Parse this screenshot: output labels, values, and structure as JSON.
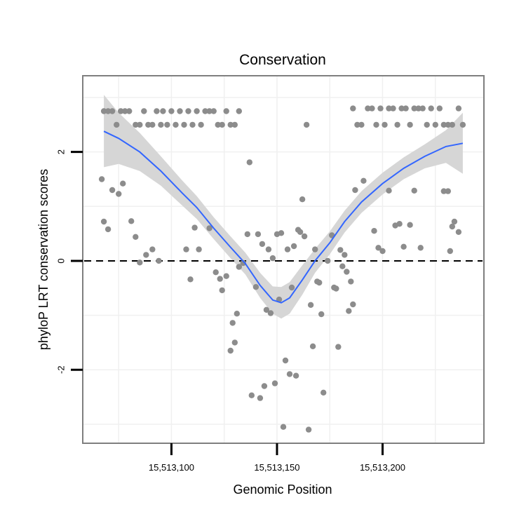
{
  "chart_data": {
    "type": "scatter",
    "title": "Conservation",
    "xlabel": "Genomic Position",
    "ylabel": "phyloP LRT conservation scores",
    "xlim": [
      15513058,
      15513248
    ],
    "ylim": [
      -3.35,
      3.4
    ],
    "x_ticks": [
      15513100,
      15513150,
      15513200
    ],
    "x_tick_labels": [
      "15,513,100",
      "15,513,150",
      "15,513,200"
    ],
    "y_ticks": [
      -2,
      0,
      2
    ],
    "y_tick_labels": [
      "-2",
      "0",
      "2"
    ],
    "reference_line": {
      "y": 0,
      "style": "dashed"
    },
    "colors": {
      "points": "#8c8c8c",
      "smooth": "#3366ff",
      "ribbon": "#d6d6d6",
      "frame": "#7f7f7f",
      "grid": "#f0f0f0"
    },
    "smooth": {
      "x": [
        15513068,
        15513075,
        15513085,
        15513095,
        15513105,
        15513112,
        15513120,
        15513128,
        15513135,
        15513142,
        15513148,
        15513152,
        15513156,
        15513162,
        15513168,
        15513175,
        15513182,
        15513190,
        15513200,
        15513210,
        15513220,
        15513230,
        15513238
      ],
      "y": [
        2.38,
        2.25,
        2.0,
        1.65,
        1.25,
        0.98,
        0.6,
        0.25,
        -0.05,
        -0.45,
        -0.72,
        -0.77,
        -0.68,
        -0.35,
        0.0,
        0.33,
        0.72,
        1.08,
        1.42,
        1.7,
        1.92,
        2.1,
        2.16
      ],
      "lower": [
        1.72,
        1.78,
        1.65,
        1.38,
        1.02,
        0.77,
        0.4,
        0.05,
        -0.25,
        -0.68,
        -0.97,
        -1.06,
        -0.97,
        -0.62,
        -0.22,
        0.12,
        0.52,
        0.88,
        1.22,
        1.5,
        1.7,
        1.8,
        1.6
      ],
      "upper": [
        3.05,
        2.72,
        2.35,
        1.92,
        1.48,
        1.19,
        0.8,
        0.45,
        0.15,
        -0.22,
        -0.47,
        -0.48,
        -0.39,
        -0.08,
        0.22,
        0.54,
        0.92,
        1.28,
        1.62,
        1.9,
        2.14,
        2.4,
        2.72
      ]
    },
    "points": [
      {
        "x": 15513068,
        "y": 2.75
      },
      {
        "x": 15513070,
        "y": 2.75
      },
      {
        "x": 15513072,
        "y": 2.75
      },
      {
        "x": 15513074,
        "y": 2.5
      },
      {
        "x": 15513076,
        "y": 2.75
      },
      {
        "x": 15513078,
        "y": 2.75
      },
      {
        "x": 15513080,
        "y": 2.75
      },
      {
        "x": 15513083,
        "y": 2.5
      },
      {
        "x": 15513085,
        "y": 2.5
      },
      {
        "x": 15513087,
        "y": 2.75
      },
      {
        "x": 15513089,
        "y": 2.5
      },
      {
        "x": 15513091,
        "y": 2.5
      },
      {
        "x": 15513093,
        "y": 2.75
      },
      {
        "x": 15513095,
        "y": 2.5
      },
      {
        "x": 15513096,
        "y": 2.75
      },
      {
        "x": 15513098,
        "y": 2.5
      },
      {
        "x": 15513100,
        "y": 2.75
      },
      {
        "x": 15513102,
        "y": 2.5
      },
      {
        "x": 15513104,
        "y": 2.75
      },
      {
        "x": 15513106,
        "y": 2.5
      },
      {
        "x": 15513108,
        "y": 2.75
      },
      {
        "x": 15513110,
        "y": 2.5
      },
      {
        "x": 15513112,
        "y": 2.75
      },
      {
        "x": 15513114,
        "y": 2.5
      },
      {
        "x": 15513116,
        "y": 2.75
      },
      {
        "x": 15513118,
        "y": 2.75
      },
      {
        "x": 15513120,
        "y": 2.75
      },
      {
        "x": 15513122,
        "y": 2.5
      },
      {
        "x": 15513124,
        "y": 2.5
      },
      {
        "x": 15513126,
        "y": 2.75
      },
      {
        "x": 15513128,
        "y": 2.5
      },
      {
        "x": 15513130,
        "y": 2.5
      },
      {
        "x": 15513132,
        "y": 2.75
      },
      {
        "x": 15513186,
        "y": 2.8
      },
      {
        "x": 15513188,
        "y": 2.5
      },
      {
        "x": 15513190,
        "y": 2.5
      },
      {
        "x": 15513193,
        "y": 2.8
      },
      {
        "x": 15513195,
        "y": 2.8
      },
      {
        "x": 15513197,
        "y": 2.5
      },
      {
        "x": 15513199,
        "y": 2.8
      },
      {
        "x": 15513201,
        "y": 2.5
      },
      {
        "x": 15513203,
        "y": 2.8
      },
      {
        "x": 15513205,
        "y": 2.8
      },
      {
        "x": 15513207,
        "y": 2.5
      },
      {
        "x": 15513209,
        "y": 2.8
      },
      {
        "x": 15513211,
        "y": 2.8
      },
      {
        "x": 15513213,
        "y": 2.5
      },
      {
        "x": 15513215,
        "y": 2.8
      },
      {
        "x": 15513217,
        "y": 2.8
      },
      {
        "x": 15513219,
        "y": 2.8
      },
      {
        "x": 15513221,
        "y": 2.5
      },
      {
        "x": 15513223,
        "y": 2.8
      },
      {
        "x": 15513225,
        "y": 2.5
      },
      {
        "x": 15513227,
        "y": 2.8
      },
      {
        "x": 15513229,
        "y": 2.5
      },
      {
        "x": 15513231,
        "y": 2.5
      },
      {
        "x": 15513233,
        "y": 2.5
      },
      {
        "x": 15513236,
        "y": 2.8
      },
      {
        "x": 15513238,
        "y": 2.5
      },
      {
        "x": 15513067,
        "y": 1.5
      },
      {
        "x": 15513068,
        "y": 0.72
      },
      {
        "x": 15513070,
        "y": 0.58
      },
      {
        "x": 15513072,
        "y": 1.3
      },
      {
        "x": 15513075,
        "y": 1.23
      },
      {
        "x": 15513077,
        "y": 1.42
      },
      {
        "x": 15513081,
        "y": 0.73
      },
      {
        "x": 15513083,
        "y": 0.44
      },
      {
        "x": 15513085,
        "y": -0.03
      },
      {
        "x": 15513088,
        "y": 0.11
      },
      {
        "x": 15513091,
        "y": 0.21
      },
      {
        "x": 15513094,
        "y": 0.0
      },
      {
        "x": 15513107,
        "y": 0.21
      },
      {
        "x": 15513109,
        "y": -0.34
      },
      {
        "x": 15513111,
        "y": 0.61
      },
      {
        "x": 15513113,
        "y": 0.21
      },
      {
        "x": 15513118,
        "y": 0.6
      },
      {
        "x": 15513121,
        "y": -0.21
      },
      {
        "x": 15513123,
        "y": -0.33
      },
      {
        "x": 15513124,
        "y": -0.54
      },
      {
        "x": 15513126,
        "y": -0.28
      },
      {
        "x": 15513128,
        "y": -1.65
      },
      {
        "x": 15513129,
        "y": -1.14
      },
      {
        "x": 15513130,
        "y": -1.5
      },
      {
        "x": 15513131,
        "y": -0.97
      },
      {
        "x": 15513132,
        "y": -0.11
      },
      {
        "x": 15513134,
        "y": -0.04
      },
      {
        "x": 15513136,
        "y": 0.49
      },
      {
        "x": 15513137,
        "y": 1.81
      },
      {
        "x": 15513138,
        "y": -2.47
      },
      {
        "x": 15513140,
        "y": -0.48
      },
      {
        "x": 15513141,
        "y": 0.49
      },
      {
        "x": 15513142,
        "y": -2.52
      },
      {
        "x": 15513143,
        "y": 0.31
      },
      {
        "x": 15513144,
        "y": -2.3
      },
      {
        "x": 15513145,
        "y": -0.9
      },
      {
        "x": 15513146,
        "y": 0.21
      },
      {
        "x": 15513147,
        "y": -0.96
      },
      {
        "x": 15513148,
        "y": 0.05
      },
      {
        "x": 15513149,
        "y": -2.25
      },
      {
        "x": 15513150,
        "y": 0.49
      },
      {
        "x": 15513151,
        "y": -0.71
      },
      {
        "x": 15513152,
        "y": 0.51
      },
      {
        "x": 15513153,
        "y": -3.05
      },
      {
        "x": 15513154,
        "y": -1.83
      },
      {
        "x": 15513155,
        "y": 0.21
      },
      {
        "x": 15513156,
        "y": -2.08
      },
      {
        "x": 15513157,
        "y": -0.49
      },
      {
        "x": 15513158,
        "y": 0.27
      },
      {
        "x": 15513159,
        "y": -2.11
      },
      {
        "x": 15513160,
        "y": 0.57
      },
      {
        "x": 15513161,
        "y": 0.53
      },
      {
        "x": 15513162,
        "y": 1.13
      },
      {
        "x": 15513163,
        "y": 0.45
      },
      {
        "x": 15513164,
        "y": 2.5
      },
      {
        "x": 15513165,
        "y": -3.1
      },
      {
        "x": 15513166,
        "y": -0.81
      },
      {
        "x": 15513167,
        "y": -1.57
      },
      {
        "x": 15513168,
        "y": 0.21
      },
      {
        "x": 15513169,
        "y": -0.38
      },
      {
        "x": 15513170,
        "y": -0.4
      },
      {
        "x": 15513171,
        "y": -0.98
      },
      {
        "x": 15513172,
        "y": -2.42
      },
      {
        "x": 15513174,
        "y": 0.0
      },
      {
        "x": 15513176,
        "y": 0.47
      },
      {
        "x": 15513177,
        "y": -0.49
      },
      {
        "x": 15513178,
        "y": -0.51
      },
      {
        "x": 15513179,
        "y": -1.58
      },
      {
        "x": 15513180,
        "y": 0.2
      },
      {
        "x": 15513181,
        "y": -0.1
      },
      {
        "x": 15513182,
        "y": 0.11
      },
      {
        "x": 15513183,
        "y": -0.2
      },
      {
        "x": 15513184,
        "y": -0.92
      },
      {
        "x": 15513185,
        "y": -0.38
      },
      {
        "x": 15513186,
        "y": -0.8
      },
      {
        "x": 15513187,
        "y": 1.3
      },
      {
        "x": 15513191,
        "y": 1.47
      },
      {
        "x": 15513196,
        "y": 0.55
      },
      {
        "x": 15513198,
        "y": 0.24
      },
      {
        "x": 15513200,
        "y": 0.18
      },
      {
        "x": 15513203,
        "y": 1.29
      },
      {
        "x": 15513206,
        "y": 0.65
      },
      {
        "x": 15513208,
        "y": 0.68
      },
      {
        "x": 15513210,
        "y": 0.26
      },
      {
        "x": 15513213,
        "y": 0.66
      },
      {
        "x": 15513215,
        "y": 1.29
      },
      {
        "x": 15513218,
        "y": 0.24
      },
      {
        "x": 15513229,
        "y": 1.28
      },
      {
        "x": 15513231,
        "y": 1.28
      },
      {
        "x": 15513232,
        "y": 0.18
      },
      {
        "x": 15513233,
        "y": 0.63
      },
      {
        "x": 15513234,
        "y": 0.72
      },
      {
        "x": 15513236,
        "y": 0.53
      }
    ]
  }
}
